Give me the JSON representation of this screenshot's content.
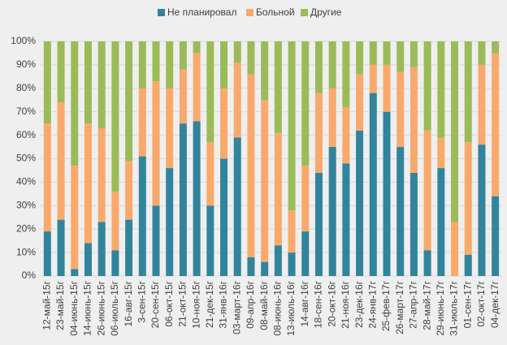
{
  "chart_data": {
    "type": "stacked_bar",
    "categories": [
      "12-май-15г",
      "23-май-15г",
      "04-июнь-15г",
      "14-июнь-15г",
      "26-июнь-15г",
      "06-июль-15г",
      "16-авг-15г",
      "3-сен-15г",
      "20-сен-15г",
      "06-окт-15г",
      "21-окт-15г",
      "10-ноя-15г",
      "21-дек-15г",
      "31-янв-16г",
      "03-март-16г",
      "09-апр-16г",
      "08-май-16г",
      "08-июнь-16г",
      "13-июль-16г",
      "14-авг-16г",
      "18-сен-16г",
      "20-окт-16г",
      "21-ноя-16г",
      "23-дек-16г",
      "24-янв-17г",
      "25-фев-17г",
      "26-март-17г",
      "27-апр-17г",
      "28-май-17г",
      "29-июнь-17г",
      "31-июль-17г",
      "01-сен-17г",
      "02-окт-17г",
      "04-дек-17г"
    ],
    "series": [
      {
        "name": "Не планировал",
        "color": "#31849b",
        "values": [
          19,
          24,
          3,
          14,
          23,
          11,
          24,
          51,
          30,
          46,
          65,
          66,
          30,
          50,
          59,
          8,
          6,
          13,
          10,
          19,
          44,
          55,
          48,
          62,
          78,
          70,
          55,
          44,
          11,
          46,
          0,
          9,
          56,
          34
        ]
      },
      {
        "name": "Больной",
        "color": "#f9a96c",
        "values": [
          46,
          50,
          44,
          51,
          40,
          25,
          25,
          29,
          53,
          34,
          23,
          29,
          27,
          30,
          32,
          78,
          69,
          48,
          18,
          28,
          34,
          25,
          24,
          24,
          12,
          20,
          32,
          45,
          51,
          13,
          23,
          48,
          34,
          61
        ]
      },
      {
        "name": "Другие",
        "color": "#9bbb59",
        "values": [
          35,
          26,
          53,
          35,
          37,
          64,
          51,
          20,
          17,
          20,
          12,
          5,
          43,
          20,
          9,
          14,
          25,
          39,
          72,
          53,
          22,
          20,
          28,
          14,
          10,
          10,
          13,
          11,
          38,
          41,
          77,
          43,
          10,
          5
        ]
      }
    ],
    "ylim": [
      0,
      100
    ],
    "yticks": [
      {
        "value": 0,
        "label": "0%"
      },
      {
        "value": 10,
        "label": "10%"
      },
      {
        "value": 20,
        "label": "20%"
      },
      {
        "value": 30,
        "label": "30%"
      },
      {
        "value": 40,
        "label": "40%"
      },
      {
        "value": 50,
        "label": "50%"
      },
      {
        "value": 60,
        "label": "60%"
      },
      {
        "value": 70,
        "label": "70%"
      },
      {
        "value": 80,
        "label": "80%"
      },
      {
        "value": 90,
        "label": "90%"
      },
      {
        "value": 100,
        "label": "100%"
      }
    ],
    "grid": true,
    "legend": "top"
  }
}
